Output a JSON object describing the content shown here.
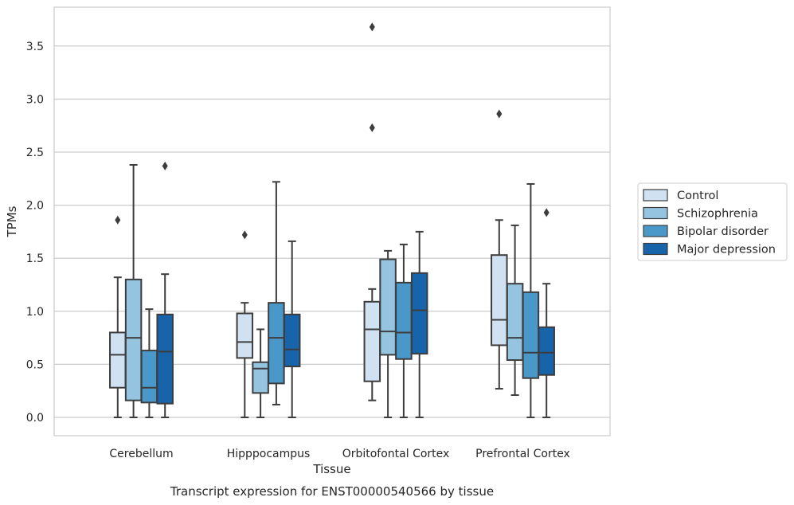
{
  "chart_data": {
    "type": "box",
    "caption": "Transcript expression for ENST00000540566 by tissue",
    "xlabel": "Tissue",
    "ylabel": "TPMs",
    "ylim": [
      -0.18,
      3.87
    ],
    "yticks": [
      0.0,
      0.5,
      1.0,
      1.5,
      2.0,
      2.5,
      3.0,
      3.5
    ],
    "ytick_labels": [
      "0.0",
      "0.5",
      "1.0",
      "1.5",
      "2.0",
      "2.5",
      "3.0",
      "3.5"
    ],
    "grid": "horizontal",
    "legend_position": "right",
    "categories": [
      "Cerebellum",
      "Hipppocampus",
      "Orbitofontal Cortex",
      "Prefrontal Cortex"
    ],
    "series": [
      {
        "name": "Control",
        "color": "#d0e1f2",
        "boxes": [
          {
            "whislo": 0.0,
            "q1": 0.28,
            "med": 0.59,
            "q3": 0.8,
            "whishi": 1.32,
            "fliers": [
              1.86
            ]
          },
          {
            "whislo": 0.0,
            "q1": 0.56,
            "med": 0.71,
            "q3": 0.98,
            "whishi": 1.08,
            "fliers": [
              1.72
            ]
          },
          {
            "whislo": 0.16,
            "q1": 0.34,
            "med": 0.83,
            "q3": 1.09,
            "whishi": 1.21,
            "fliers": [
              2.73,
              3.68
            ]
          },
          {
            "whislo": 0.27,
            "q1": 0.68,
            "med": 0.92,
            "q3": 1.53,
            "whishi": 1.86,
            "fliers": [
              2.86
            ]
          }
        ]
      },
      {
        "name": "Schizophrenia",
        "color": "#94c4df",
        "boxes": [
          {
            "whislo": 0.0,
            "q1": 0.16,
            "med": 0.75,
            "q3": 1.3,
            "whishi": 2.38,
            "fliers": []
          },
          {
            "whislo": 0.0,
            "q1": 0.23,
            "med": 0.46,
            "q3": 0.52,
            "whishi": 0.83,
            "fliers": []
          },
          {
            "whislo": 0.0,
            "q1": 0.59,
            "med": 0.81,
            "q3": 1.49,
            "whishi": 1.57,
            "fliers": []
          },
          {
            "whislo": 0.21,
            "q1": 0.54,
            "med": 0.75,
            "q3": 1.26,
            "whishi": 1.81,
            "fliers": []
          }
        ]
      },
      {
        "name": "Bipolar disorder",
        "color": "#4a98c9",
        "boxes": [
          {
            "whislo": 0.0,
            "q1": 0.14,
            "med": 0.28,
            "q3": 0.63,
            "whishi": 1.02,
            "fliers": []
          },
          {
            "whislo": 0.12,
            "q1": 0.32,
            "med": 0.75,
            "q3": 1.08,
            "whishi": 2.22,
            "fliers": []
          },
          {
            "whislo": 0.0,
            "q1": 0.55,
            "med": 0.8,
            "q3": 1.27,
            "whishi": 1.63,
            "fliers": []
          },
          {
            "whislo": 0.0,
            "q1": 0.37,
            "med": 0.61,
            "q3": 1.18,
            "whishi": 2.2,
            "fliers": []
          }
        ]
      },
      {
        "name": "Major depression",
        "color": "#1764ab",
        "boxes": [
          {
            "whislo": 0.0,
            "q1": 0.13,
            "med": 0.62,
            "q3": 0.97,
            "whishi": 1.35,
            "fliers": [
              2.37
            ]
          },
          {
            "whislo": 0.0,
            "q1": 0.48,
            "med": 0.64,
            "q3": 0.97,
            "whishi": 1.66,
            "fliers": []
          },
          {
            "whislo": 0.0,
            "q1": 0.6,
            "med": 1.01,
            "q3": 1.36,
            "whishi": 1.75,
            "fliers": []
          },
          {
            "whislo": 0.0,
            "q1": 0.4,
            "med": 0.61,
            "q3": 0.85,
            "whishi": 1.26,
            "fliers": [
              1.93
            ]
          }
        ]
      }
    ]
  }
}
